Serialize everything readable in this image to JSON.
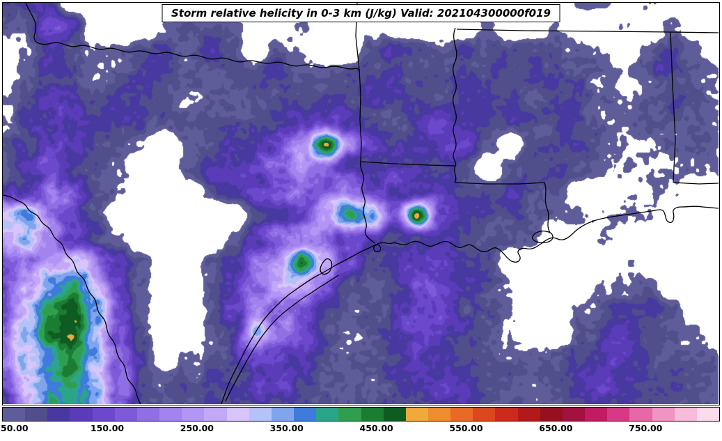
{
  "title": "Storm relative helicity in 0-3 km (J/kg) Valid: 202104300000f019",
  "chart_data": {
    "type": "heatmap",
    "title": "Storm relative helicity in 0-3 km (J/kg) Valid: 202104300000f019",
    "field_name": "storm relative helicity 0-3 km",
    "units": "J/kg",
    "valid_time": "202104300000f019",
    "background_color": "#ffffff",
    "colorbar": {
      "min": 50,
      "max": 850,
      "step": 25,
      "below_min_color": "#ffffff",
      "tick_labels": [
        "50.00",
        "150.00",
        "250.00",
        "350.00",
        "450.00",
        "550.00",
        "650.00",
        "750.00"
      ],
      "tick_values": [
        50,
        150,
        250,
        350,
        450,
        550,
        650,
        750
      ],
      "colors": [
        "#5f5d99",
        "#514e8c",
        "#47399f",
        "#5a3cb8",
        "#6b48cc",
        "#7e5ad9",
        "#906fe4",
        "#a383ee",
        "#b295f4",
        "#c3a8f7",
        "#d7c5fb",
        "#b4c2f8",
        "#7ea5ee",
        "#3f7bdc",
        "#2aa58a",
        "#2f9e4f",
        "#1b7c33",
        "#0f5c22",
        "#f2a93b",
        "#ee8c2f",
        "#e86a24",
        "#dc471e",
        "#cb2a1d",
        "#b2191b",
        "#951020",
        "#a31140",
        "#c01b63",
        "#d63a85",
        "#e668a6",
        "#f094c4",
        "#f7bcd9",
        "#fcdcec"
      ]
    },
    "grid": {
      "comment": "approximate SRH values (J/kg) on a coarse grid read from the figure; 0 = below 50 (white)",
      "nx": 32,
      "ny": 18,
      "values": [
        [
          130,
          120,
          90,
          0,
          0,
          0,
          0,
          0,
          0,
          0,
          0,
          0,
          0,
          0,
          0,
          0,
          0,
          0,
          0,
          0,
          0,
          0,
          0,
          0,
          0,
          60,
          70,
          0,
          70,
          0,
          0,
          0
        ],
        [
          100,
          70,
          130,
          110,
          0,
          0,
          0,
          60,
          80,
          90,
          60,
          0,
          0,
          60,
          0,
          0,
          60,
          0,
          0,
          0,
          0,
          60,
          0,
          0,
          60,
          0,
          0,
          60,
          0,
          60,
          0,
          0
        ],
        [
          0,
          60,
          120,
          90,
          60,
          60,
          80,
          100,
          60,
          110,
          70,
          0,
          90,
          60,
          0,
          0,
          80,
          110,
          90,
          70,
          100,
          80,
          60,
          90,
          110,
          80,
          60,
          0,
          70,
          90,
          60,
          0
        ],
        [
          0,
          70,
          100,
          80,
          60,
          90,
          110,
          120,
          80,
          60,
          90,
          70,
          110,
          80,
          60,
          70,
          100,
          130,
          90,
          80,
          110,
          90,
          70,
          100,
          120,
          90,
          70,
          60,
          80,
          100,
          70,
          60
        ],
        [
          60,
          100,
          140,
          110,
          80,
          100,
          120,
          90,
          70,
          80,
          100,
          120,
          90,
          70,
          80,
          90,
          110,
          140,
          100,
          70,
          90,
          110,
          80,
          70,
          90,
          110,
          80,
          60,
          70,
          90,
          80,
          60
        ],
        [
          70,
          120,
          160,
          130,
          90,
          110,
          130,
          100,
          80,
          90,
          110,
          130,
          100,
          120,
          140,
          110,
          90,
          100,
          120,
          140,
          110,
          90,
          100,
          80,
          90,
          100,
          80,
          70,
          80,
          90,
          70,
          60
        ],
        [
          80,
          130,
          170,
          140,
          100,
          80,
          60,
          0,
          60,
          90,
          120,
          150,
          180,
          220,
          500,
          250,
          150,
          120,
          100,
          130,
          110,
          70,
          0,
          80,
          100,
          120,
          90,
          70,
          60,
          80,
          70,
          60
        ],
        [
          90,
          140,
          180,
          150,
          110,
          70,
          0,
          0,
          70,
          110,
          140,
          170,
          200,
          250,
          200,
          160,
          130,
          150,
          120,
          90,
          70,
          0,
          60,
          90,
          110,
          90,
          70,
          60,
          70,
          60,
          60,
          50
        ],
        [
          110,
          160,
          200,
          170,
          120,
          70,
          0,
          0,
          0,
          60,
          90,
          120,
          160,
          200,
          160,
          180,
          140,
          110,
          130,
          100,
          80,
          90,
          110,
          90,
          70,
          0,
          0,
          60,
          70,
          60,
          0,
          0
        ],
        [
          300,
          380,
          240,
          160,
          100,
          0,
          0,
          0,
          0,
          0,
          0,
          60,
          90,
          140,
          240,
          420,
          300,
          150,
          520,
          160,
          100,
          90,
          100,
          80,
          60,
          70,
          60,
          80,
          60,
          0,
          0,
          0
        ],
        [
          260,
          320,
          280,
          180,
          110,
          60,
          0,
          0,
          0,
          0,
          60,
          120,
          200,
          260,
          200,
          160,
          120,
          90,
          110,
          120,
          90,
          70,
          80,
          60,
          0,
          0,
          60,
          0,
          0,
          0,
          0,
          0
        ],
        [
          160,
          240,
          300,
          340,
          260,
          140,
          70,
          0,
          0,
          60,
          100,
          180,
          280,
          500,
          300,
          150,
          100,
          120,
          140,
          130,
          110,
          80,
          0,
          0,
          0,
          0,
          0,
          70,
          0,
          0,
          0,
          0
        ],
        [
          180,
          280,
          360,
          420,
          300,
          160,
          80,
          0,
          0,
          70,
          130,
          220,
          320,
          280,
          180,
          110,
          80,
          130,
          160,
          150,
          120,
          90,
          60,
          0,
          0,
          0,
          60,
          80,
          70,
          0,
          0,
          0
        ],
        [
          200,
          300,
          420,
          480,
          340,
          180,
          80,
          0,
          0,
          80,
          140,
          260,
          220,
          150,
          100,
          70,
          90,
          130,
          160,
          150,
          130,
          100,
          70,
          0,
          0,
          60,
          90,
          110,
          90,
          70,
          0,
          0
        ],
        [
          220,
          320,
          440,
          500,
          360,
          200,
          90,
          0,
          0,
          70,
          120,
          380,
          180,
          120,
          80,
          60,
          80,
          120,
          150,
          140,
          120,
          90,
          60,
          0,
          0,
          70,
          100,
          120,
          100,
          80,
          60,
          0
        ],
        [
          200,
          300,
          400,
          460,
          340,
          200,
          90,
          0,
          60,
          90,
          140,
          200,
          150,
          100,
          70,
          60,
          70,
          100,
          130,
          140,
          120,
          90,
          70,
          60,
          70,
          90,
          110,
          120,
          110,
          90,
          70,
          60
        ],
        [
          180,
          280,
          380,
          420,
          320,
          180,
          80,
          60,
          80,
          110,
          150,
          170,
          130,
          90,
          70,
          70,
          80,
          110,
          130,
          130,
          110,
          90,
          80,
          70,
          80,
          100,
          110,
          110,
          100,
          90,
          70,
          60
        ],
        [
          160,
          260,
          340,
          380,
          280,
          160,
          70,
          70,
          90,
          120,
          140,
          150,
          120,
          90,
          80,
          80,
          90,
          110,
          120,
          120,
          110,
          90,
          80,
          80,
          90,
          100,
          100,
          100,
          90,
          80,
          70,
          60
        ]
      ]
    },
    "borders": {
      "stroke": "#000000",
      "paths": [
        "M 33,0 C 40,18 52,28 46,44 C 41,58 56,62 70,58 C 86,54 92,66 108,62 C 124,58 132,70 148,66 C 164,62 172,74 188,70 C 204,66 212,76 228,72 C 244,68 252,80 268,76 C 284,72 292,84 308,80 C 324,76 332,88 348,84 C 364,80 372,90 388,86 C 404,82 412,94 428,90 C 444,86 452,96 468,92 C 484,88 492,98 508,94 L 512,96",
        "M 512,96 L 507,48 L 509,0",
        "M 512,96 L 514,132 L 513,168 L 515,202 L 514,228 C 512,240 522,248 517,260 C 512,272 524,280 519,292 C 514,304 526,314 521,326 C 518,334 528,340 534,345",
        "M 514,228 L 562,231 L 612,233 L 650,234",
        "M 650,36 C 642,56 658,68 649,86 C 641,102 657,114 649,130 C 641,146 657,158 649,174 C 642,188 656,198 649,212 C 643,224 653,228 650,234 C 646,244 654,250 649,258",
        "M 649,258 L 695,260 L 742,260 L 778,258 C 783,270 776,282 782,296 C 787,308 779,318 786,330",
        "M 652,38 L 750,40 L 860,41 L 959,42 L 1028,43",
        "M 959,42 L 962,118 L 966,196 L 963,258 M 963,258 L 1000,260 L 1028,259",
        "M 314,576 C 319,561 323,549 329,537 C 335,525 339,517 345,505 C 351,493 357,483 363,473 C 371,459 379,449 389,439 C 399,429 407,421 419,413 C 431,405 441,397 453,391 C 465,385 473,379 485,373 C 497,367 507,361 519,355 C 529,351 535,347 541,345 C 549,343 553,347 559,345 C 567,343 571,349 579,347 C 585,345 589,341 597,343 C 605,345 609,351 617,349 C 625,347 631,341 639,343 C 647,345 651,353 659,351 C 665,349 669,345 675,349 C 681,353 687,359 695,357 C 701,355 705,349 711,353 C 719,357 723,367 731,371 C 739,375 747,369 741,361 C 737,355 745,351 753,353 C 761,355 769,349 777,343 C 783,339 789,335 797,339 C 805,343 813,337 819,331 C 827,323 837,317 849,313 C 861,309 875,307 889,305 C 903,303 917,301 931,299 C 939,298 945,295 949,299 C 953,305 951,313 957,315 C 963,317 965,309 963,301 C 962,296 967,293 975,293 C 985,293 995,291 1005,293 L 1028,295",
        "M 320,572 C 328,554 338,537 346,522 C 354,507 362,494 370,482 C 380,468 390,456 402,446 C 412,438 422,430 434,422 C 444,416 452,410 462,404 C 470,399 476,395 482,391",
        "M 198,576 C 190,564 194,556 184,546 C 174,536 180,526 170,514 C 160,502 166,494 156,482 C 146,470 152,460 142,450 C 132,440 138,430 128,420 C 118,410 122,400 112,392 C 102,384 106,374 96,366 C 86,358 90,348 80,342 C 70,336 72,326 62,320 C 52,314 54,306 44,302 C 34,298 36,290 26,286 C 16,282 14,278 0,276",
        "M 762,334 C 766,328 776,326 784,329 C 792,332 792,340 784,343 C 776,346 764,344 761,339 C 760,337 760,336 762,334 Z",
        "M 464,368 C 470,366 474,372 472,380 C 470,388 462,392 458,388 C 454,384 456,376 464,368 Z",
        "M 536,348 C 540,346 544,350 542,355 C 540,359 534,358 533,354 C 532,351 533,349 536,348 Z"
      ]
    }
  }
}
